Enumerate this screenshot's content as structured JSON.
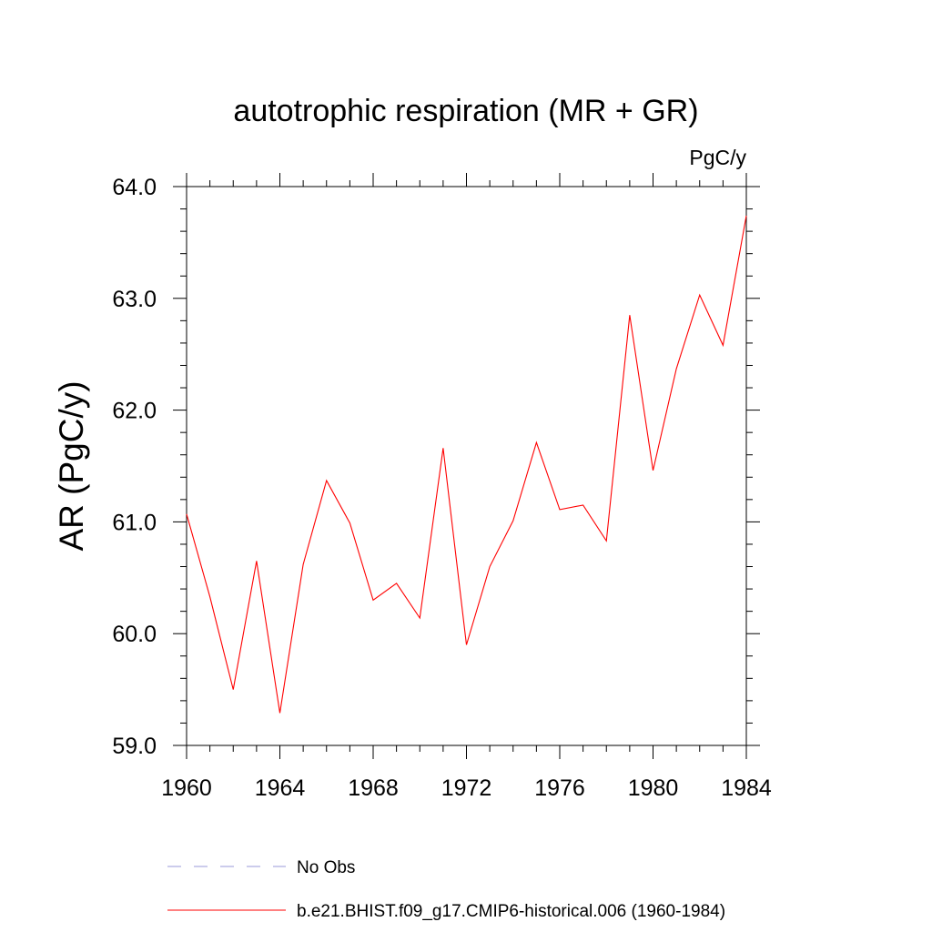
{
  "chart_data": {
    "type": "line",
    "title": "autotrophic respiration (MR + GR)",
    "units": "PgC/y",
    "xlabel": "",
    "ylabel": "AR  (PgC/y)",
    "xlim": [
      1960,
      1984
    ],
    "ylim": [
      59.0,
      64.0
    ],
    "x_ticks": [
      1960,
      1964,
      1968,
      1972,
      1976,
      1980,
      1984
    ],
    "x_tick_labels": [
      "1960",
      "1964",
      "1968",
      "1972",
      "1976",
      "1980",
      "1984"
    ],
    "x_minor_step": 1,
    "y_ticks": [
      59.0,
      60.0,
      61.0,
      62.0,
      63.0,
      64.0
    ],
    "y_tick_labels": [
      "59.0",
      "60.0",
      "61.0",
      "62.0",
      "63.0",
      "64.0"
    ],
    "y_minor_step": 0.2,
    "grid": false,
    "legend_placement": "bottom",
    "series": [
      {
        "name": "b.e21.BHIST.f09_g17.CMIP6-historical.006 (1960-1984)",
        "color": "#ff0000",
        "style": "solid",
        "x": [
          1960,
          1961,
          1962,
          1963,
          1964,
          1965,
          1966,
          1967,
          1968,
          1969,
          1970,
          1971,
          1972,
          1973,
          1974,
          1975,
          1976,
          1977,
          1978,
          1979,
          1980,
          1981,
          1982,
          1983,
          1984
        ],
        "y": [
          61.07,
          60.33,
          59.5,
          60.65,
          59.29,
          60.62,
          61.37,
          60.99,
          60.3,
          60.45,
          60.14,
          61.66,
          59.9,
          60.6,
          61.01,
          61.71,
          61.11,
          61.15,
          60.83,
          62.85,
          61.46,
          62.37,
          63.03,
          62.58,
          63.74
        ]
      }
    ],
    "legend": [
      {
        "label": "No Obs",
        "color": "#9a9ad8",
        "style": "dashed"
      },
      {
        "label": "b.e21.BHIST.f09_g17.CMIP6-historical.006 (1960-1984)",
        "color": "#ff0000",
        "style": "solid"
      }
    ]
  }
}
